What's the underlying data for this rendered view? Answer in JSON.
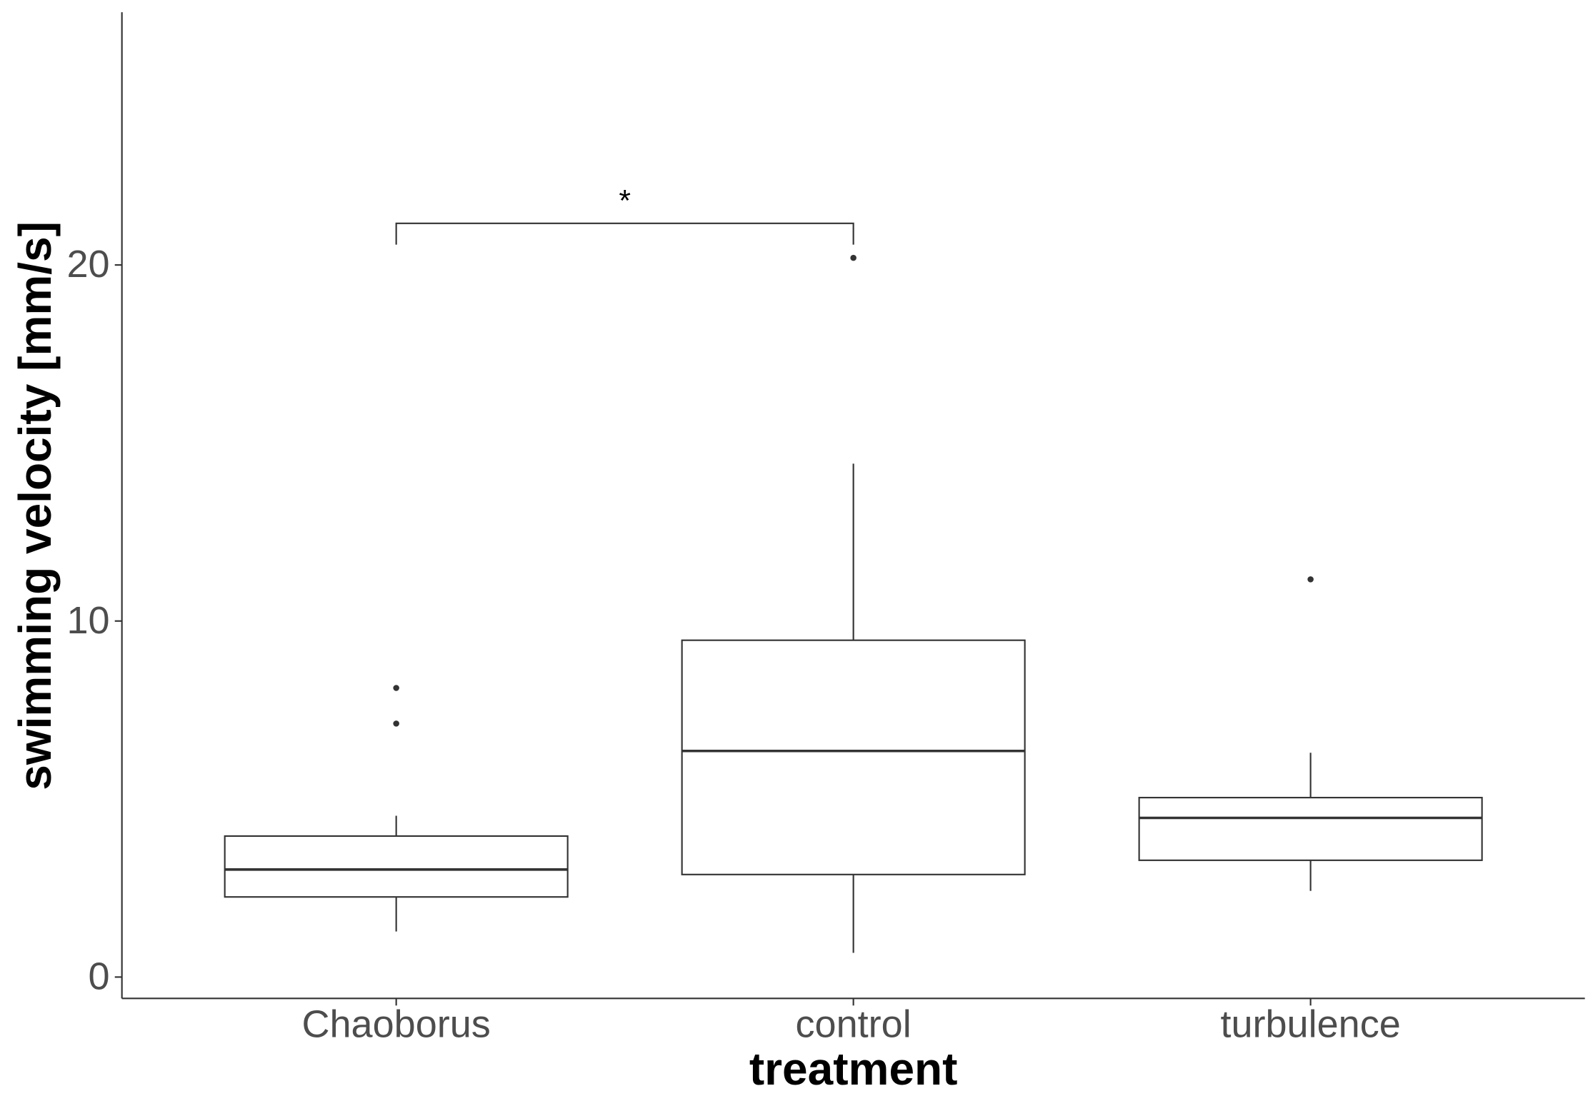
{
  "chart_data": {
    "type": "box",
    "x_label": "treatment",
    "y_label": "swimming velocity [mm/s]",
    "categories": [
      "Chaoborus",
      "control",
      "turbulence"
    ],
    "boxes": [
      {
        "min": 1.28,
        "q1": 2.25,
        "median": 3.02,
        "q3": 3.96,
        "max": 4.53,
        "outliers": [
          7.12,
          8.12
        ]
      },
      {
        "min": 0.68,
        "q1": 2.88,
        "median": 6.35,
        "q3": 9.46,
        "max": 14.42,
        "outliers": [
          20.2
        ]
      },
      {
        "min": 2.42,
        "q1": 3.28,
        "median": 4.47,
        "q3": 5.04,
        "max": 6.3,
        "outliers": [
          11.17
        ]
      }
    ],
    "significance": {
      "text": "*",
      "between": [
        0,
        1
      ],
      "y": 21.17
    },
    "color": "#333333",
    "ylim": [
      -0.6,
      27.1
    ],
    "yticks": [
      0,
      10,
      20
    ],
    "grid": false
  }
}
